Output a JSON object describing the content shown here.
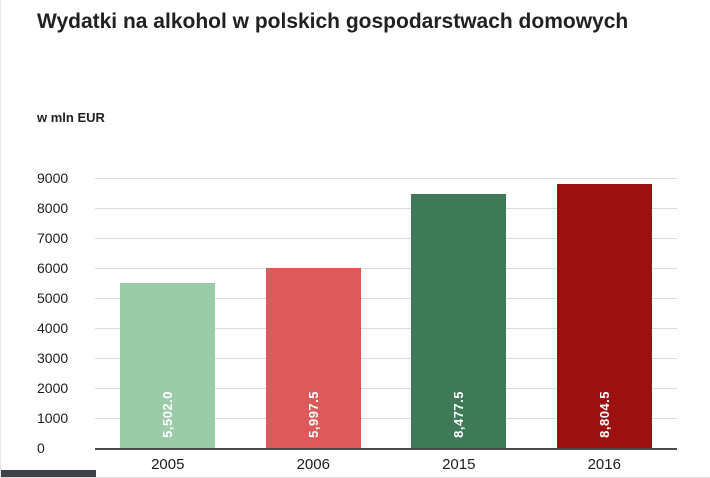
{
  "title": "Wydatki na alkohol w polskich gospodarstwach domowych",
  "subtitle": "w mln EUR",
  "chart_data": {
    "type": "bar",
    "title": "Wydatki na alkohol w polskich gospodarstwach domowych",
    "ylabel": "w mln EUR",
    "xlabel": "",
    "categories": [
      "2005",
      "2006",
      "2015",
      "2016"
    ],
    "values": [
      5502.0,
      5997.5,
      8477.5,
      8804.5
    ],
    "value_labels": [
      "5,502.0",
      "5,997.5",
      "8,477.5",
      "8,804.5"
    ],
    "bar_colors": [
      "#9ccbaa",
      "#dc5a5a",
      "#3e7a58",
      "#9c1010"
    ],
    "ylim": [
      0,
      9000
    ],
    "ytick_interval": 1000,
    "yticks": [
      "0",
      "1000",
      "2000",
      "3000",
      "4000",
      "5000",
      "6000",
      "7000",
      "8000",
      "9000"
    ],
    "grid": true,
    "gridline_color": "#dcdcdc",
    "baseline_color": "#4a4a4a",
    "legend_position": "none"
  }
}
